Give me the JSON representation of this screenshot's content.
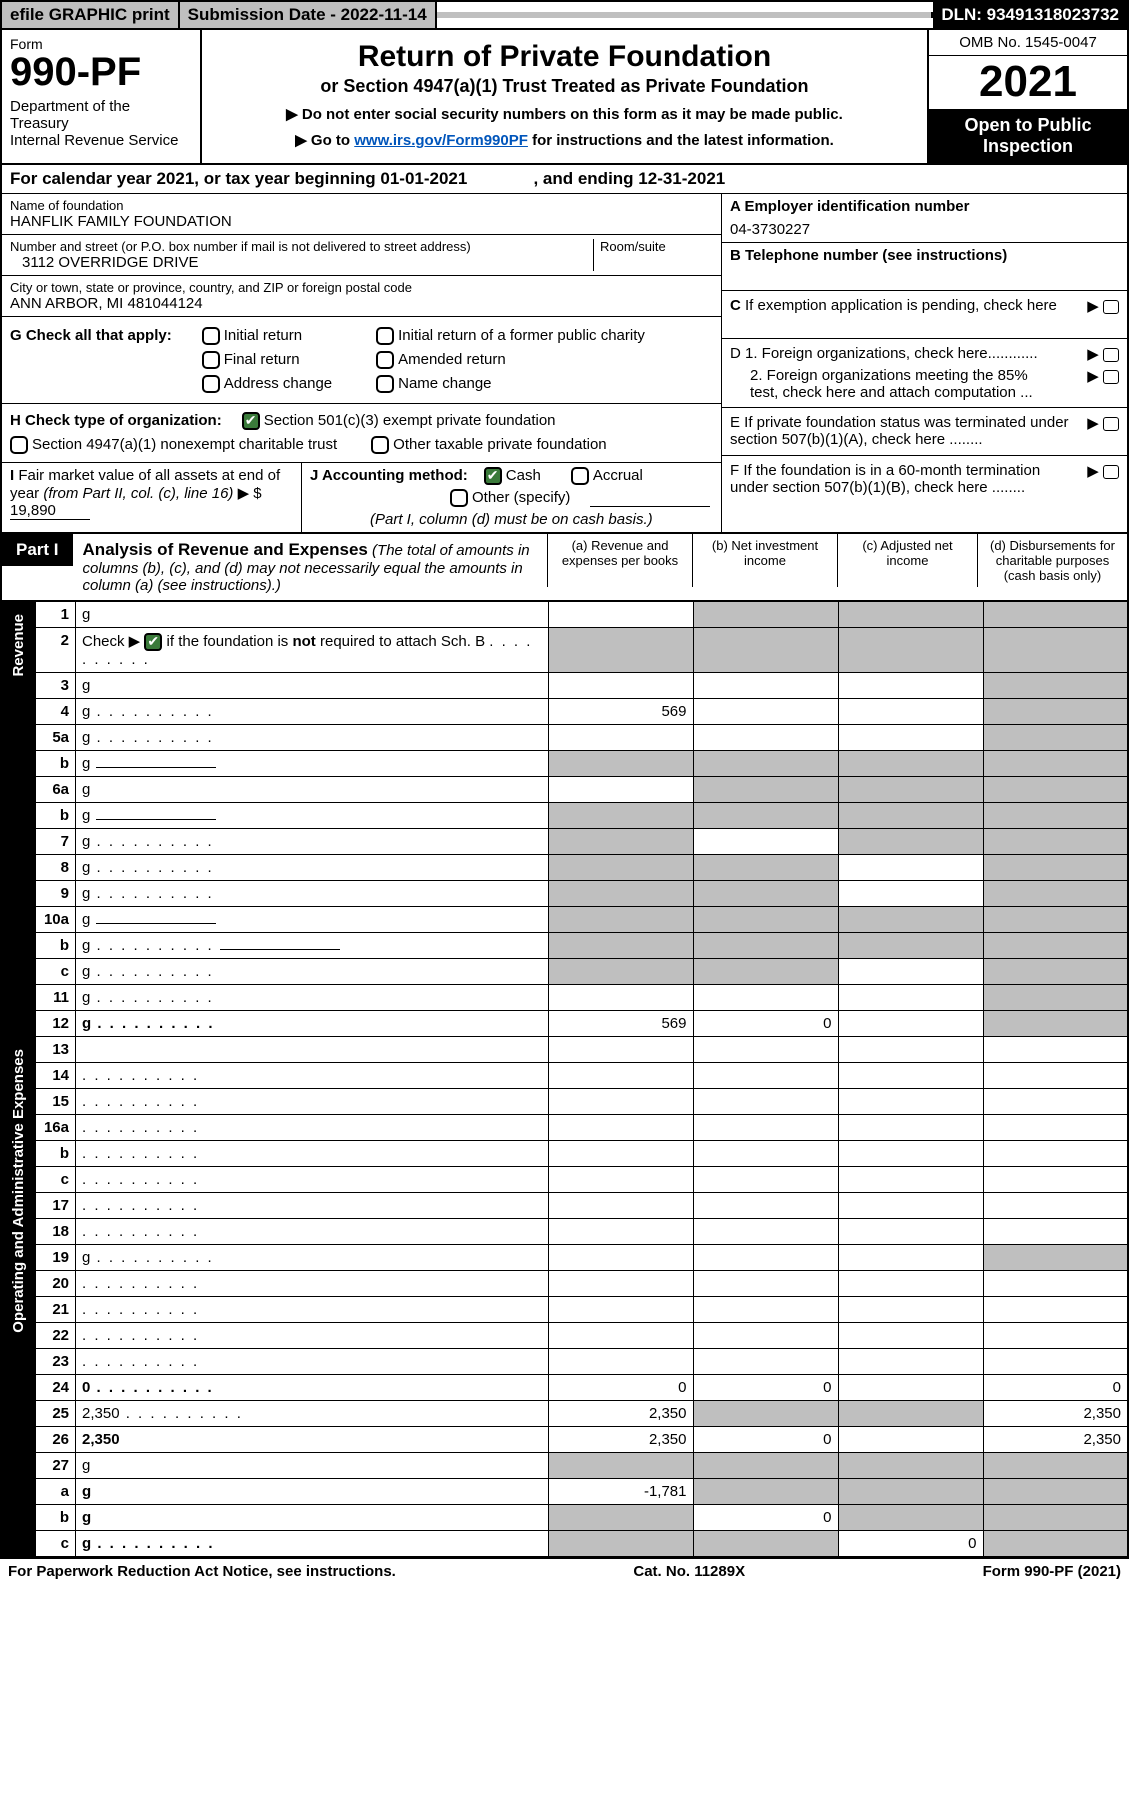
{
  "topbar": {
    "efile": "efile GRAPHIC print",
    "subdate": "Submission Date - 2022-11-14",
    "dln": "DLN: 93491318023732"
  },
  "header": {
    "form": "Form",
    "formno": "990-PF",
    "dept": "Department of the Treasury\nInternal Revenue Service",
    "title": "Return of Private Foundation",
    "subtitle": "or Section 4947(a)(1) Trust Treated as Private Foundation",
    "note1": "▶ Do not enter social security numbers on this form as it may be made public.",
    "note2_pre": "▶ Go to ",
    "note2_link": "www.irs.gov/Form990PF",
    "note2_post": " for instructions and the latest information.",
    "omb": "OMB No. 1545-0047",
    "year": "2021",
    "open": "Open to Public\nInspection"
  },
  "cal": "For calendar year 2021, or tax year beginning 01-01-2021              , and ending 12-31-2021",
  "name_lbl": "Name of foundation",
  "name": "HANFLIK FAMILY FOUNDATION",
  "addr_lbl": "Number and street (or P.O. box number if mail is not delivered to street address)",
  "addr": "3112 OVERRIDGE DRIVE",
  "room_lbl": "Room/suite",
  "city_lbl": "City or town, state or province, country, and ZIP or foreign postal code",
  "city": "ANN ARBOR, MI  481044124",
  "A_lbl": "A Employer identification number",
  "A_val": "04-3730227",
  "B_lbl": "B Telephone number (see instructions)",
  "C_lbl": "C If exemption application is pending, check here",
  "D1_lbl": "D 1. Foreign organizations, check here............",
  "D2_lbl": "2. Foreign organizations meeting the 85% test, check here and attach computation ...",
  "E_lbl": "E  If private foundation status was terminated under section 507(b)(1)(A), check here ........",
  "F_lbl": "F  If the foundation is in a 60-month termination under section 507(b)(1)(B), check here ........",
  "G_lbl": "G Check all that apply:",
  "G_items": [
    "Initial return",
    "Final return",
    "Address change",
    "Initial return of a former public charity",
    "Amended return",
    "Name change"
  ],
  "H_lbl": "H Check type of organization:",
  "H_items": [
    "Section 501(c)(3) exempt private foundation",
    "Section 4947(a)(1) nonexempt charitable trust",
    "Other taxable private foundation"
  ],
  "I_lbl": "I Fair market value of all assets at end of year (from Part II, col. (c), line 16) ▶ $",
  "I_val": "19,890",
  "J_lbl": "J Accounting method:",
  "J_items": [
    "Cash",
    "Accrual",
    "Other (specify)"
  ],
  "J_note": "(Part I, column (d) must be on cash basis.)",
  "part1_tag": "Part I",
  "part1_title": "Analysis of Revenue and Expenses",
  "part1_note": " (The total of amounts in columns (b), (c), and (d) may not necessarily equal the amounts in column (a) (see instructions).)",
  "colA": "(a) Revenue and expenses per books",
  "colB": "(b) Net investment income",
  "colC": "(c) Adjusted net income",
  "colD": "(d) Disbursements for charitable purposes (cash basis only)",
  "sideRev": "Revenue",
  "sideExp": "Operating and Administrative Expenses",
  "rows": [
    {
      "n": "1",
      "d": "g",
      "a": "",
      "b": "g",
      "c": "g"
    },
    {
      "n": "2",
      "d": "g",
      "a": "g",
      "b": "g",
      "c": "g",
      "dots": true,
      "notreq": true
    },
    {
      "n": "3",
      "d": "g",
      "a": "",
      "b": "",
      "c": ""
    },
    {
      "n": "4",
      "d": "g",
      "a": "569",
      "b": "",
      "c": "",
      "dots": true
    },
    {
      "n": "5a",
      "d": "g",
      "a": "",
      "b": "",
      "c": "",
      "dots": true
    },
    {
      "n": "b",
      "d": "g",
      "a": "g",
      "b": "g",
      "c": "g",
      "inline": true
    },
    {
      "n": "6a",
      "d": "g",
      "a": "",
      "b": "g",
      "c": "g"
    },
    {
      "n": "b",
      "d": "g",
      "a": "g",
      "b": "g",
      "c": "g",
      "inline": true
    },
    {
      "n": "7",
      "d": "g",
      "a": "g",
      "b": "",
      "c": "g",
      "dots": true
    },
    {
      "n": "8",
      "d": "g",
      "a": "g",
      "b": "g",
      "c": "",
      "dots": true
    },
    {
      "n": "9",
      "d": "g",
      "a": "g",
      "b": "g",
      "c": "",
      "dots": true
    },
    {
      "n": "10a",
      "d": "g",
      "a": "g",
      "b": "g",
      "c": "g",
      "inline": true
    },
    {
      "n": "b",
      "d": "g",
      "a": "g",
      "b": "g",
      "c": "g",
      "inline": true,
      "dots": true
    },
    {
      "n": "c",
      "d": "g",
      "a": "g",
      "b": "g",
      "c": "",
      "dots": true
    },
    {
      "n": "11",
      "d": "g",
      "a": "",
      "b": "",
      "c": "",
      "dots": true
    },
    {
      "n": "12",
      "d": "g",
      "a": "569",
      "b": "0",
      "c": "",
      "bold": true,
      "dots": true
    }
  ],
  "exprows": [
    {
      "n": "13",
      "d": "",
      "a": "",
      "b": "",
      "c": ""
    },
    {
      "n": "14",
      "d": "",
      "a": "",
      "b": "",
      "c": "",
      "dots": true
    },
    {
      "n": "15",
      "d": "",
      "a": "",
      "b": "",
      "c": "",
      "dots": true
    },
    {
      "n": "16a",
      "d": "",
      "a": "",
      "b": "",
      "c": "",
      "dots": true
    },
    {
      "n": "b",
      "d": "",
      "a": "",
      "b": "",
      "c": "",
      "dots": true
    },
    {
      "n": "c",
      "d": "",
      "a": "",
      "b": "",
      "c": "",
      "dots": true
    },
    {
      "n": "17",
      "d": "",
      "a": "",
      "b": "",
      "c": "",
      "dots": true
    },
    {
      "n": "18",
      "d": "",
      "a": "",
      "b": "",
      "c": "",
      "dots": true
    },
    {
      "n": "19",
      "d": "g",
      "a": "",
      "b": "",
      "c": "",
      "dots": true
    },
    {
      "n": "20",
      "d": "",
      "a": "",
      "b": "",
      "c": "",
      "dots": true
    },
    {
      "n": "21",
      "d": "",
      "a": "",
      "b": "",
      "c": "",
      "dots": true
    },
    {
      "n": "22",
      "d": "",
      "a": "",
      "b": "",
      "c": "",
      "dots": true
    },
    {
      "n": "23",
      "d": "",
      "a": "",
      "b": "",
      "c": "",
      "dots": true
    },
    {
      "n": "24",
      "d": "0",
      "a": "0",
      "b": "0",
      "c": "",
      "bold": true,
      "dots": true
    },
    {
      "n": "25",
      "d": "2,350",
      "a": "2,350",
      "b": "g",
      "c": "g",
      "dots": true
    },
    {
      "n": "26",
      "d": "2,350",
      "a": "2,350",
      "b": "0",
      "c": "",
      "bold": true
    }
  ],
  "botrows": [
    {
      "n": "27",
      "d": "g",
      "a": "g",
      "b": "g",
      "c": "g"
    },
    {
      "n": "a",
      "d": "g",
      "a": "-1,781",
      "b": "g",
      "c": "g",
      "bold": true
    },
    {
      "n": "b",
      "d": "g",
      "a": "g",
      "b": "0",
      "c": "g",
      "bold": true
    },
    {
      "n": "c",
      "d": "g",
      "a": "g",
      "b": "g",
      "c": "0",
      "bold": true,
      "dots": true
    }
  ],
  "footer": {
    "l": "For Paperwork Reduction Act Notice, see instructions.",
    "c": "Cat. No. 11289X",
    "r": "Form 990-PF (2021)"
  },
  "colors": {
    "gray": "#bfbfbf",
    "green": "#3a7a3a",
    "link": "#0055bb"
  }
}
